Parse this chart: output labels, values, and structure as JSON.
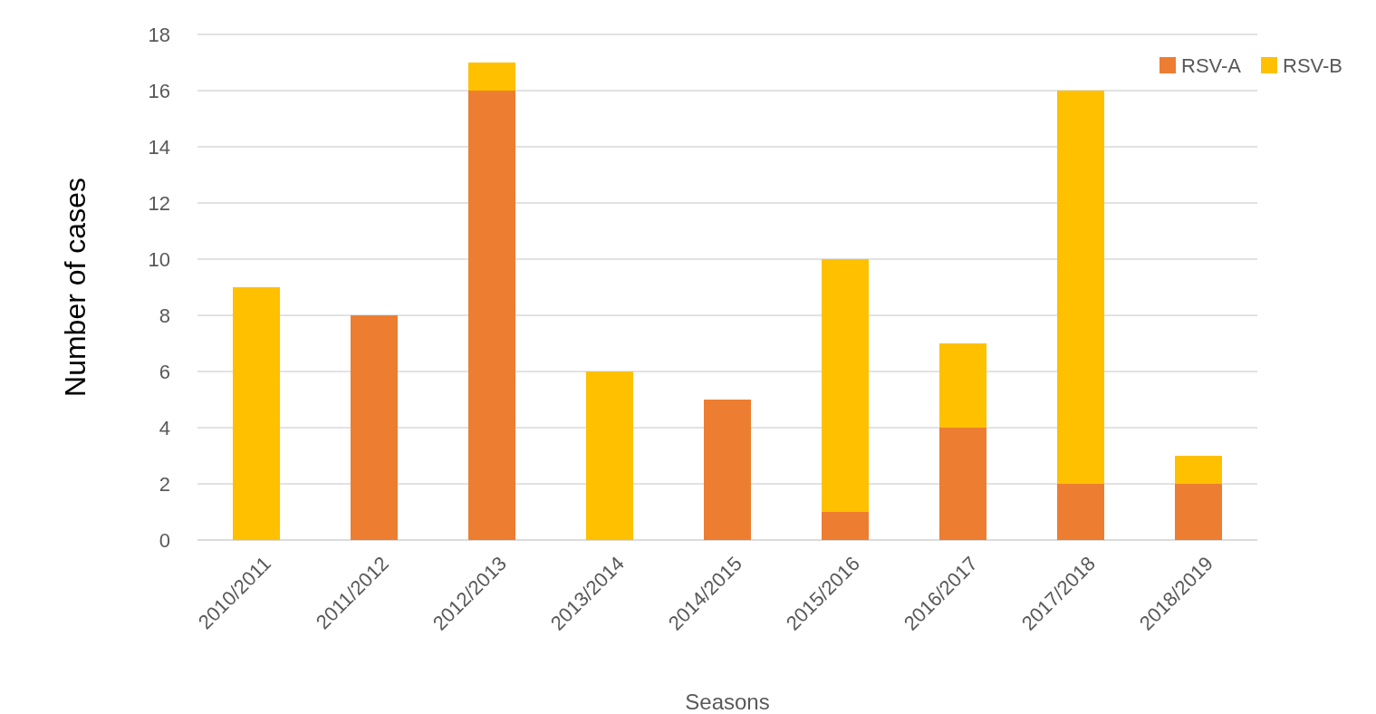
{
  "chart_data": {
    "type": "bar",
    "stacked": true,
    "xlabel": "Seasons",
    "ylabel": "Number of cases",
    "categories": [
      "2010/2011",
      "2011/2012",
      "2012/2013",
      "2013/2014",
      "2014/2015",
      "2015/2016",
      "2016/2017",
      "2017/2018",
      "2018/2019"
    ],
    "series": [
      {
        "name": "RSV-A",
        "color": "#ed7d31",
        "values": [
          0,
          8,
          16,
          0,
          5,
          1,
          4,
          2,
          2
        ]
      },
      {
        "name": "RSV-B",
        "color": "#ffc000",
        "values": [
          9,
          0,
          1,
          6,
          0,
          9,
          3,
          14,
          1
        ]
      }
    ],
    "ylim": [
      0,
      18
    ],
    "yticks": [
      0,
      2,
      4,
      6,
      8,
      10,
      12,
      14,
      16,
      18
    ],
    "grid": "y",
    "legend": "top right"
  }
}
